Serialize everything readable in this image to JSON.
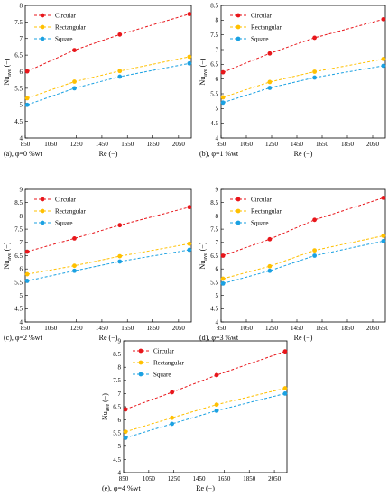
{
  "chart_data": [
    {
      "type": "line",
      "caption": "(a), φ=0 %wt",
      "xlabel": "Re (−)",
      "ylabel_base": "Nu",
      "ylabel_sub": "ave",
      "ylabel_unit": "(−)",
      "xlim": [
        850,
        2150
      ],
      "ylim": [
        4,
        8
      ],
      "xticks": [
        850,
        1050,
        1250,
        1450,
        1650,
        1850,
        2050
      ],
      "yticks": [
        4,
        4.5,
        5,
        5.5,
        6,
        6.5,
        7,
        7.5,
        8
      ],
      "x": [
        865,
        1235,
        1590,
        2135
      ],
      "series": [
        {
          "name": "Circular",
          "color": "#e8161b",
          "values": [
            6.01,
            6.65,
            7.12,
            7.74
          ]
        },
        {
          "name": "Rectangular",
          "color": "#ffc000",
          "values": [
            5.2,
            5.7,
            6.02,
            6.45
          ]
        },
        {
          "name": "Square",
          "color": "#1ba1e2",
          "values": [
            5.0,
            5.5,
            5.85,
            6.25
          ]
        }
      ],
      "legend_position": "top-left",
      "grid": false
    },
    {
      "type": "line",
      "caption": "(b), φ=1 %wt",
      "xlabel": "Re (−)",
      "ylabel_base": "Nu",
      "ylabel_sub": "ave",
      "ylabel_unit": "(−)",
      "xlim": [
        850,
        2150
      ],
      "ylim": [
        4,
        8.5
      ],
      "xticks": [
        850,
        1050,
        1250,
        1450,
        1650,
        1850,
        2050
      ],
      "yticks": [
        4,
        4.5,
        5,
        5.5,
        6,
        6.5,
        7,
        7.5,
        8,
        8.5
      ],
      "x": [
        865,
        1235,
        1590,
        2135
      ],
      "series": [
        {
          "name": "Circular",
          "color": "#e8161b",
          "values": [
            6.23,
            6.87,
            7.4,
            8.03
          ]
        },
        {
          "name": "Rectangular",
          "color": "#ffc000",
          "values": [
            5.38,
            5.9,
            6.25,
            6.68
          ]
        },
        {
          "name": "Square",
          "color": "#1ba1e2",
          "values": [
            5.2,
            5.7,
            6.05,
            6.45
          ]
        }
      ],
      "legend_position": "top-left",
      "grid": false
    },
    {
      "type": "line",
      "caption": "(c), φ=2 %wt",
      "xlabel": "Re (−)",
      "ylabel_base": "Nu",
      "ylabel_sub": "ave",
      "ylabel_unit": "(−)",
      "xlim": [
        850,
        2150
      ],
      "ylim": [
        4,
        9
      ],
      "xticks": [
        850,
        1050,
        1250,
        1450,
        1650,
        1850,
        2050
      ],
      "yticks": [
        4,
        4.5,
        5,
        5.5,
        6,
        6.5,
        7,
        7.5,
        8,
        8.5,
        9
      ],
      "x": [
        865,
        1235,
        1590,
        2135
      ],
      "series": [
        {
          "name": "Circular",
          "color": "#e8161b",
          "values": [
            6.65,
            7.15,
            7.65,
            8.33
          ]
        },
        {
          "name": "Rectangular",
          "color": "#ffc000",
          "values": [
            5.8,
            6.12,
            6.48,
            6.95
          ]
        },
        {
          "name": "Square",
          "color": "#1ba1e2",
          "values": [
            5.55,
            5.93,
            6.28,
            6.72
          ]
        }
      ],
      "legend_position": "top-left",
      "grid": false
    },
    {
      "type": "line",
      "caption": "(d), φ=3 %wt",
      "xlabel": "Re (−)",
      "ylabel_base": "Nu",
      "ylabel_sub": "ave",
      "ylabel_unit": "(−)",
      "xlim": [
        850,
        2150
      ],
      "ylim": [
        4,
        9
      ],
      "xticks": [
        850,
        1050,
        1250,
        1450,
        1650,
        1850,
        2050
      ],
      "yticks": [
        4,
        4.5,
        5,
        5.5,
        6,
        6.5,
        7,
        7.5,
        8,
        8.5,
        9
      ],
      "x": [
        865,
        1235,
        1590,
        2135
      ],
      "series": [
        {
          "name": "Circular",
          "color": "#e8161b",
          "values": [
            6.5,
            7.12,
            7.85,
            8.68
          ]
        },
        {
          "name": "Rectangular",
          "color": "#ffc000",
          "values": [
            5.63,
            6.1,
            6.7,
            7.25
          ]
        },
        {
          "name": "Square",
          "color": "#1ba1e2",
          "values": [
            5.45,
            5.93,
            6.5,
            7.05
          ]
        }
      ],
      "legend_position": "top-left",
      "grid": false
    },
    {
      "type": "line",
      "caption": "(e), φ=4 %wt",
      "xlabel": "Re (−)",
      "ylabel_base": "Nu",
      "ylabel_sub": "ave",
      "ylabel_unit": "(−)",
      "xlim": [
        850,
        2150
      ],
      "ylim": [
        4,
        9
      ],
      "xticks": [
        850,
        1050,
        1250,
        1450,
        1650,
        1850,
        2050
      ],
      "yticks": [
        4,
        4.5,
        5,
        5.5,
        6,
        6.5,
        7,
        7.5,
        8,
        8.5,
        9
      ],
      "x": [
        865,
        1235,
        1590,
        2135
      ],
      "series": [
        {
          "name": "Circular",
          "color": "#e8161b",
          "values": [
            6.4,
            7.05,
            7.7,
            8.6
          ]
        },
        {
          "name": "Rectangular",
          "color": "#ffc000",
          "values": [
            5.55,
            6.08,
            6.58,
            7.2
          ]
        },
        {
          "name": "Square",
          "color": "#1ba1e2",
          "values": [
            5.32,
            5.85,
            6.35,
            7.0
          ]
        }
      ],
      "legend_position": "top-left",
      "grid": false
    }
  ]
}
